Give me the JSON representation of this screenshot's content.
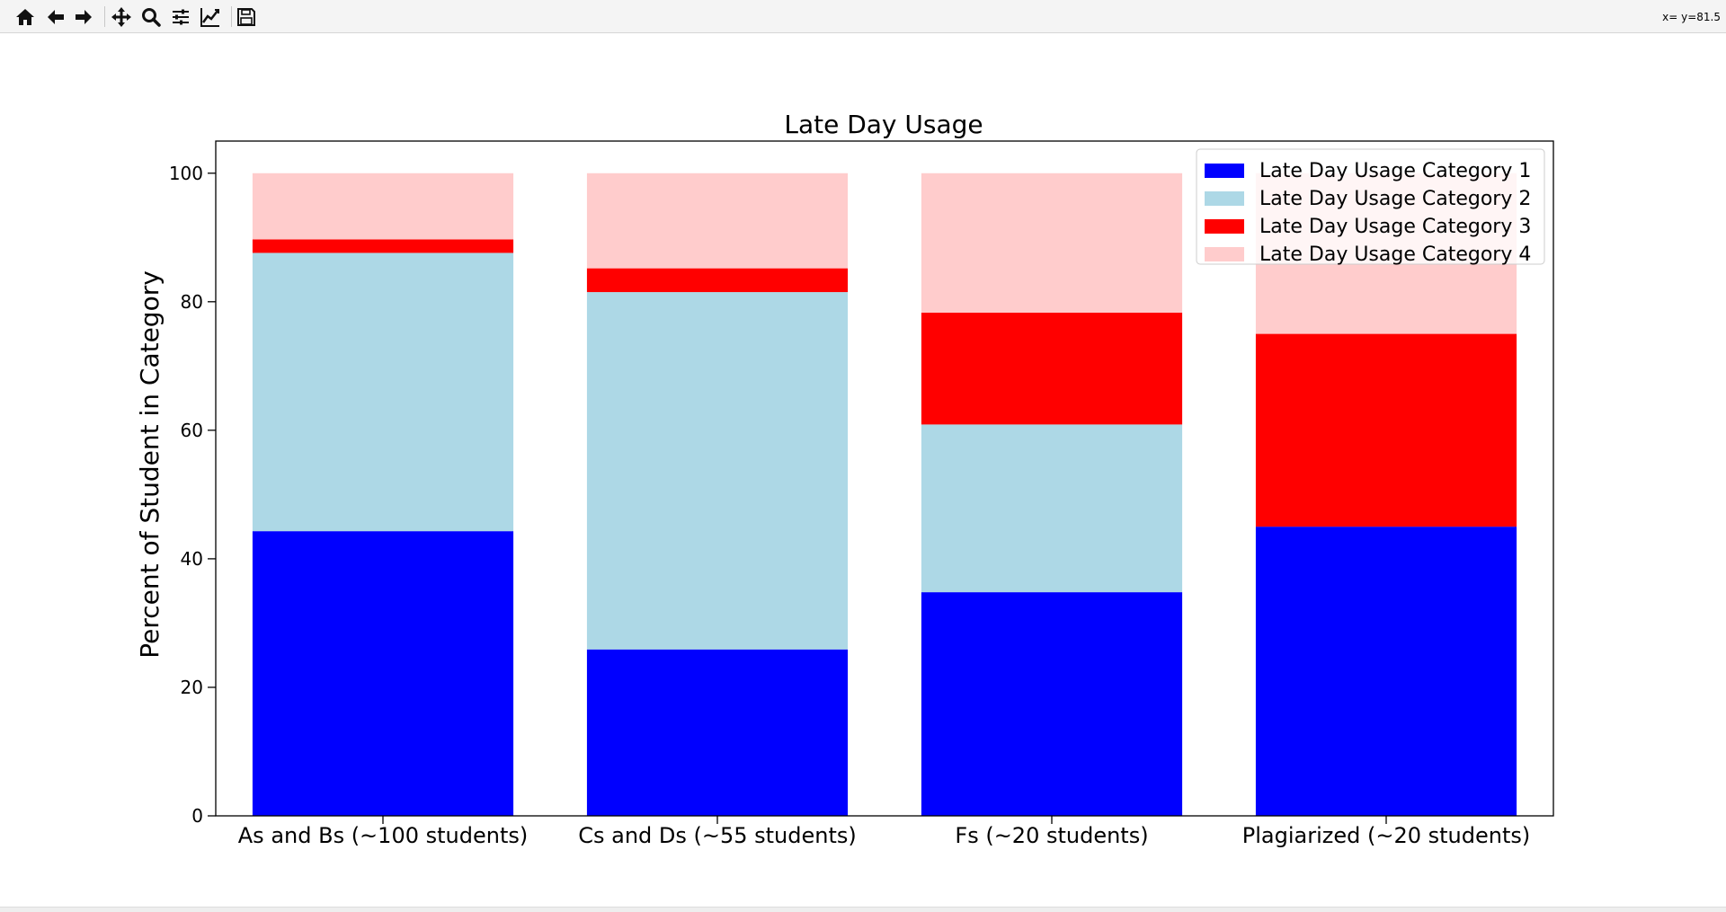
{
  "toolbar": {
    "buttons": [
      {
        "name": "home-icon"
      },
      {
        "name": "back-arrow-icon"
      },
      {
        "name": "forward-arrow-icon"
      },
      {
        "name": "pan-move-icon"
      },
      {
        "name": "zoom-magnifier-icon"
      },
      {
        "name": "subplot-config-sliders-icon"
      },
      {
        "name": "edit-axis-lines-icon"
      },
      {
        "name": "save-floppy-icon"
      }
    ],
    "coords": "x= y=81.5"
  },
  "chart_data": {
    "type": "bar",
    "stacked": true,
    "title": "Late Day Usage",
    "xlabel": "",
    "ylabel": "Percent of Student in Category",
    "ylim": [
      0,
      105
    ],
    "yticks": [
      "0",
      "20",
      "40",
      "60",
      "80",
      "100"
    ],
    "grid": false,
    "legend_position": "top-right",
    "categories": [
      "As and Bs (~100 students)",
      "Cs and Ds (~55 students)",
      "Fs (~20 students)",
      "Plagiarized (~20 students)"
    ],
    "series": [
      {
        "name": "Late Day Usage Category 1",
        "color": "#0000ff",
        "values": [
          44.3,
          25.9,
          34.8,
          45.0
        ]
      },
      {
        "name": "Late Day Usage Category 2",
        "color": "#add8e6",
        "values": [
          43.3,
          55.6,
          26.1,
          0.0
        ]
      },
      {
        "name": "Late Day Usage Category 3",
        "color": "#ff0000",
        "values": [
          2.1,
          3.7,
          17.4,
          30.0
        ]
      },
      {
        "name": "Late Day Usage Category 4",
        "color": "#ffcccc",
        "values": [
          10.3,
          14.8,
          21.7,
          25.0
        ]
      }
    ]
  }
}
